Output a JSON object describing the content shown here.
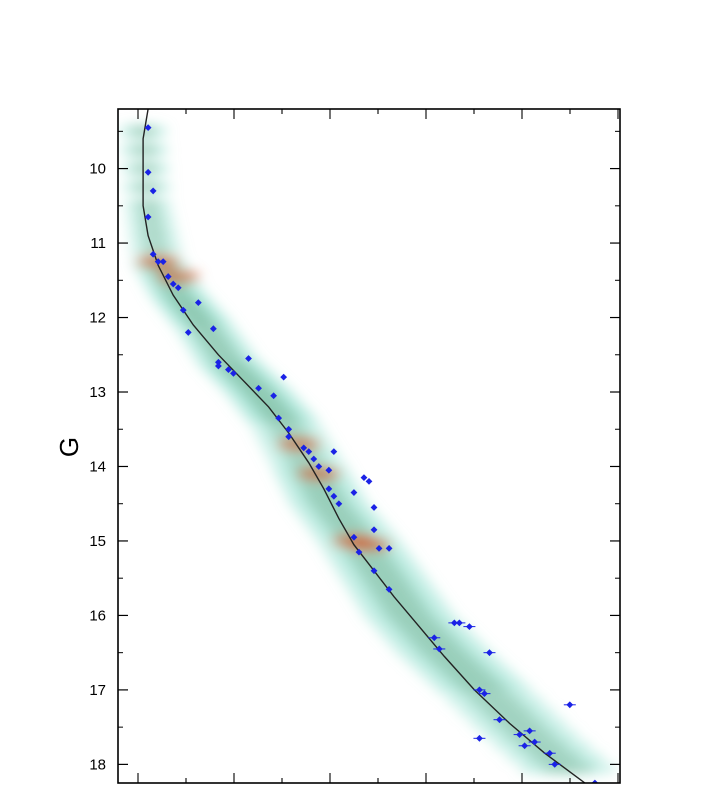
{
  "chart_data": {
    "type": "scatter",
    "title": "",
    "xlabel": "",
    "ylabel": "G",
    "ylim": [
      18.25,
      9.2
    ],
    "xlim": [
      0,
      1
    ],
    "y_inverted": true,
    "y_ticks": [
      10,
      11,
      12,
      13,
      14,
      15,
      16,
      17,
      18
    ],
    "x_tick_labels_visible": false,
    "grid": false,
    "legend": "none",
    "colors": {
      "points": "#1a22e6",
      "curve": "#222222",
      "density_low": "#7fdcc8",
      "density_mid": "#6a9a74",
      "density_high": "#d9541a",
      "frame": "#000000"
    },
    "density_ridge": [
      [
        0.05,
        9.5
      ],
      [
        0.06,
        10.5
      ],
      [
        0.08,
        11.25
      ],
      [
        0.12,
        11.7
      ],
      [
        0.17,
        12.1
      ],
      [
        0.22,
        12.6
      ],
      [
        0.28,
        13.0
      ],
      [
        0.33,
        13.4
      ],
      [
        0.38,
        14.0
      ],
      [
        0.42,
        14.5
      ],
      [
        0.48,
        15.0
      ],
      [
        0.53,
        15.5
      ],
      [
        0.58,
        16.0
      ],
      [
        0.65,
        16.5
      ],
      [
        0.73,
        17.0
      ],
      [
        0.82,
        17.6
      ],
      [
        0.92,
        18.2
      ]
    ],
    "series": [
      {
        "kind": "fit-curve",
        "points": [
          [
            0.06,
            9.2
          ],
          [
            0.05,
            9.6
          ],
          [
            0.05,
            10.0
          ],
          [
            0.05,
            10.5
          ],
          [
            0.06,
            10.9
          ],
          [
            0.08,
            11.3
          ],
          [
            0.11,
            11.7
          ],
          [
            0.15,
            12.1
          ],
          [
            0.2,
            12.5
          ],
          [
            0.25,
            12.85
          ],
          [
            0.3,
            13.2
          ],
          [
            0.34,
            13.55
          ],
          [
            0.38,
            13.95
          ],
          [
            0.41,
            14.3
          ],
          [
            0.44,
            14.7
          ],
          [
            0.47,
            15.05
          ],
          [
            0.51,
            15.4
          ],
          [
            0.55,
            15.75
          ],
          [
            0.6,
            16.15
          ],
          [
            0.65,
            16.55
          ],
          [
            0.71,
            17.0
          ],
          [
            0.78,
            17.45
          ],
          [
            0.85,
            17.85
          ],
          [
            0.93,
            18.25
          ]
        ]
      },
      {
        "kind": "stars",
        "points": [
          [
            0.06,
            9.45
          ],
          [
            0.06,
            10.05
          ],
          [
            0.07,
            10.3
          ],
          [
            0.06,
            10.65
          ],
          [
            0.07,
            11.15
          ],
          [
            0.08,
            11.25
          ],
          [
            0.09,
            11.25
          ],
          [
            0.1,
            11.45
          ],
          [
            0.11,
            11.55
          ],
          [
            0.12,
            11.6
          ],
          [
            0.13,
            11.9
          ],
          [
            0.16,
            11.8
          ],
          [
            0.14,
            12.2
          ],
          [
            0.19,
            12.15
          ],
          [
            0.2,
            12.6
          ],
          [
            0.2,
            12.65
          ],
          [
            0.22,
            12.7
          ],
          [
            0.23,
            12.75
          ],
          [
            0.26,
            12.55
          ],
          [
            0.28,
            12.95
          ],
          [
            0.31,
            13.05
          ],
          [
            0.33,
            12.8
          ],
          [
            0.32,
            13.35
          ],
          [
            0.34,
            13.5
          ],
          [
            0.34,
            13.6
          ],
          [
            0.37,
            13.75
          ],
          [
            0.38,
            13.8
          ],
          [
            0.39,
            13.9
          ],
          [
            0.4,
            14.0
          ],
          [
            0.42,
            14.05
          ],
          [
            0.42,
            14.3
          ],
          [
            0.43,
            13.8
          ],
          [
            0.43,
            14.4
          ],
          [
            0.44,
            14.5
          ],
          [
            0.47,
            14.35
          ],
          [
            0.49,
            14.15
          ],
          [
            0.5,
            14.2
          ],
          [
            0.51,
            14.55
          ],
          [
            0.51,
            14.85
          ],
          [
            0.47,
            14.95
          ],
          [
            0.48,
            15.15
          ],
          [
            0.52,
            15.1
          ],
          [
            0.54,
            15.1
          ],
          [
            0.51,
            15.4
          ],
          [
            0.54,
            15.65
          ],
          [
            0.63,
            16.3
          ],
          [
            0.64,
            16.45
          ],
          [
            0.67,
            16.1
          ],
          [
            0.68,
            16.1
          ],
          [
            0.7,
            16.15
          ],
          [
            0.74,
            16.5
          ],
          [
            0.72,
            17.0
          ],
          [
            0.73,
            17.05
          ],
          [
            0.72,
            17.65
          ],
          [
            0.76,
            17.4
          ],
          [
            0.8,
            17.6
          ],
          [
            0.81,
            17.75
          ],
          [
            0.82,
            17.55
          ],
          [
            0.83,
            17.7
          ],
          [
            0.86,
            17.85
          ],
          [
            0.87,
            18.0
          ],
          [
            0.9,
            17.2
          ],
          [
            0.95,
            18.25
          ]
        ]
      }
    ]
  }
}
